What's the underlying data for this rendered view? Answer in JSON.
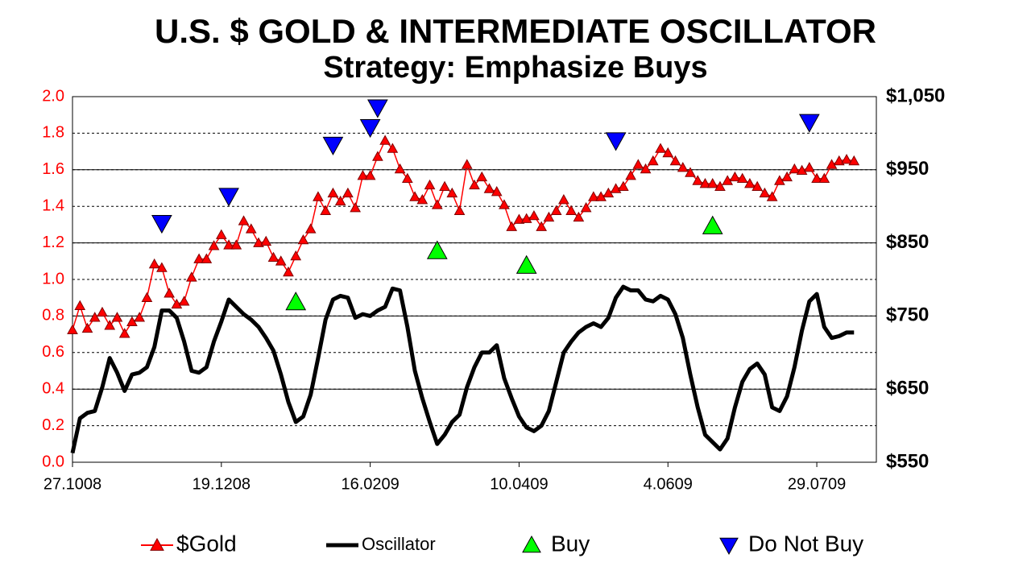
{
  "chart_data": {
    "type": "line",
    "title": "U.S. $ GOLD & INTERMEDIATE OSCILLATOR",
    "subtitle": "Strategy: Emphasize Buys",
    "categories": [
      "27.1008",
      null,
      null,
      null,
      null,
      null,
      null,
      null,
      null,
      null,
      null,
      null,
      null,
      null,
      null,
      null,
      null,
      null,
      null,
      null,
      "19.1208",
      null,
      null,
      null,
      null,
      null,
      null,
      null,
      null,
      null,
      null,
      null,
      null,
      null,
      null,
      null,
      null,
      null,
      null,
      null,
      "16.0209",
      null,
      null,
      null,
      null,
      null,
      null,
      null,
      null,
      null,
      null,
      null,
      null,
      null,
      null,
      null,
      null,
      null,
      null,
      null,
      "10.0409",
      null,
      null,
      null,
      null,
      null,
      null,
      null,
      null,
      null,
      null,
      null,
      null,
      null,
      null,
      null,
      null,
      null,
      null,
      null,
      "4.0609",
      null,
      null,
      null,
      null,
      null,
      null,
      null,
      null,
      null,
      null,
      null,
      null,
      null,
      null,
      null,
      null,
      null,
      null,
      null,
      "29.0709",
      null,
      null,
      null,
      null,
      null
    ],
    "series": [
      {
        "name": "$Gold",
        "color": "#ff0000",
        "axis": "y2",
        "style": "line-marker",
        "values": [
          731,
          764,
          733,
          748,
          755,
          737,
          748,
          726,
          742,
          748,
          775,
          821,
          816,
          781,
          766,
          770,
          803,
          828,
          828,
          846,
          861,
          847,
          847,
          880,
          869,
          850,
          852,
          830,
          825,
          810,
          832,
          854,
          869,
          913,
          894,
          918,
          907,
          918,
          898,
          942,
          942,
          968,
          990,
          979,
          951,
          938,
          913,
          909,
          929,
          902,
          927,
          918,
          894,
          957,
          929,
          940,
          924,
          920,
          902,
          872,
          882,
          883,
          887,
          872,
          885,
          894,
          909,
          894,
          885,
          898,
          913,
          913,
          918,
          924,
          927,
          942,
          957,
          951,
          962,
          979,
          973,
          962,
          953,
          946,
          935,
          931,
          931,
          927,
          935,
          940,
          938,
          931,
          927,
          918,
          913,
          935,
          940,
          951,
          949,
          953,
          938,
          938,
          957,
          962,
          964,
          962
        ]
      },
      {
        "name": "Oscillator",
        "color": "#000000",
        "axis": "y",
        "style": "line",
        "values": [
          0.05,
          0.24,
          0.27,
          0.28,
          0.41,
          0.57,
          0.49,
          0.39,
          0.48,
          0.49,
          0.52,
          0.63,
          0.83,
          0.83,
          0.79,
          0.66,
          0.5,
          0.49,
          0.52,
          0.66,
          0.77,
          0.89,
          0.85,
          0.81,
          0.78,
          0.74,
          0.68,
          0.61,
          0.48,
          0.33,
          0.22,
          0.25,
          0.37,
          0.57,
          0.78,
          0.89,
          0.91,
          0.9,
          0.79,
          0.81,
          0.8,
          0.83,
          0.85,
          0.95,
          0.94,
          0.74,
          0.5,
          0.35,
          0.22,
          0.1,
          0.15,
          0.22,
          0.26,
          0.41,
          0.52,
          0.6,
          0.6,
          0.64,
          0.46,
          0.35,
          0.25,
          0.19,
          0.17,
          0.2,
          0.28,
          0.44,
          0.6,
          0.66,
          0.71,
          0.74,
          0.76,
          0.74,
          0.79,
          0.9,
          0.96,
          0.94,
          0.94,
          0.89,
          0.88,
          0.91,
          0.89,
          0.81,
          0.68,
          0.48,
          0.3,
          0.15,
          0.11,
          0.07,
          0.13,
          0.3,
          0.44,
          0.51,
          0.54,
          0.48,
          0.3,
          0.28,
          0.36,
          0.52,
          0.72,
          0.88,
          0.92,
          0.74,
          0.68,
          0.69,
          0.71,
          0.71
        ]
      },
      {
        "name": "Buy",
        "color": "#00ff00",
        "axis": "y2",
        "style": "up",
        "values": [
          null,
          null,
          null,
          null,
          null,
          null,
          null,
          null,
          null,
          null,
          null,
          null,
          null,
          null,
          null,
          null,
          null,
          null,
          null,
          null,
          null,
          null,
          null,
          null,
          null,
          null,
          null,
          null,
          null,
          null,
          769,
          null,
          null,
          null,
          null,
          null,
          null,
          null,
          null,
          null,
          null,
          null,
          null,
          null,
          null,
          null,
          null,
          null,
          null,
          839,
          null,
          null,
          null,
          null,
          null,
          null,
          null,
          null,
          null,
          null,
          null,
          819,
          null,
          null,
          null,
          null,
          null,
          null,
          null,
          null,
          null,
          null,
          null,
          null,
          null,
          null,
          null,
          null,
          null,
          null,
          null,
          null,
          null,
          null,
          null,
          null,
          873,
          null,
          null,
          null,
          null,
          null,
          null,
          null,
          null,
          null,
          null,
          null,
          null,
          null,
          null,
          null,
          null,
          null,
          null,
          null
        ]
      },
      {
        "name": "Do Not Buy",
        "color": "#0000ff",
        "axis": "y2",
        "style": "down",
        "values": [
          null,
          null,
          null,
          null,
          null,
          null,
          null,
          null,
          null,
          null,
          null,
          null,
          877,
          null,
          null,
          null,
          null,
          null,
          null,
          null,
          null,
          914,
          null,
          null,
          null,
          null,
          null,
          null,
          null,
          null,
          null,
          null,
          null,
          null,
          null,
          984,
          null,
          null,
          null,
          null,
          1008,
          1035,
          null,
          null,
          null,
          null,
          null,
          null,
          null,
          null,
          null,
          null,
          null,
          null,
          null,
          null,
          null,
          null,
          null,
          null,
          null,
          null,
          null,
          null,
          null,
          null,
          null,
          null,
          null,
          null,
          null,
          null,
          null,
          990,
          null,
          null,
          null,
          null,
          null,
          null,
          null,
          null,
          null,
          null,
          null,
          null,
          null,
          null,
          null,
          null,
          null,
          null,
          null,
          null,
          null,
          null,
          null,
          null,
          null,
          1015,
          null,
          null,
          null,
          null,
          null,
          null
        ]
      }
    ],
    "ylim": [
      0,
      2
    ],
    "yticks": [
      {
        "value": 0,
        "label": "0.0"
      },
      0.2,
      0.4,
      0.6,
      0.8,
      {
        "value": 1,
        "label": "1.0"
      },
      1.2,
      1.4,
      1.6,
      1.8,
      {
        "value": 2,
        "label": "2.0"
      }
    ],
    "y2lim": [
      550,
      1050
    ],
    "y2ticks": [
      {
        "value": 550,
        "label": "$550"
      },
      {
        "value": 650,
        "label": "$650"
      },
      {
        "value": 750,
        "label": "$750"
      },
      {
        "value": 850,
        "label": "$850"
      },
      {
        "value": 950,
        "label": "$950"
      },
      {
        "value": 1050,
        "label": "$1,050"
      }
    ],
    "yaxis_color": "#ff0000",
    "grid": true,
    "legend": "bottom"
  }
}
